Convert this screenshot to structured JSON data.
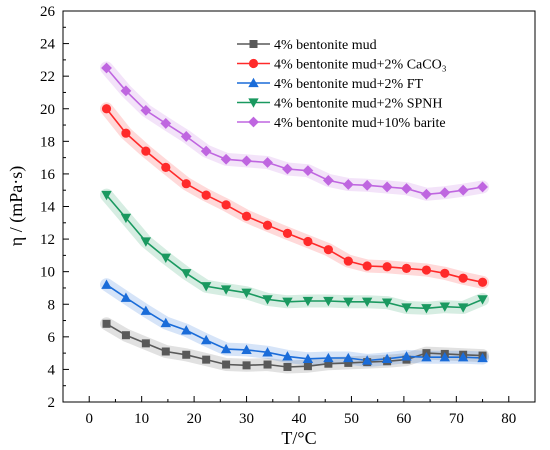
{
  "chart_data": {
    "type": "line",
    "xlabel": "T/°C",
    "ylabel": "η / (mPa·s)",
    "xlim": [
      -5,
      85
    ],
    "ylim": [
      2,
      26
    ],
    "xticks": [
      "0",
      "10",
      "20",
      "30",
      "40",
      "50",
      "60",
      "70",
      "80"
    ],
    "yticks": [
      "2",
      "4",
      "6",
      "8",
      "10",
      "12",
      "14",
      "16",
      "18",
      "20",
      "22",
      "24",
      "26"
    ],
    "grid": false,
    "legend_position": "top-right",
    "x": [
      3.3,
      7.0,
      10.8,
      14.6,
      18.5,
      22.3,
      26.1,
      30.0,
      34.0,
      37.8,
      41.7,
      45.6,
      49.4,
      53.0,
      56.8,
      60.5,
      64.3,
      67.8,
      71.3,
      75.0
    ],
    "series": [
      {
        "name": "4% bentonite mud",
        "color": "#595959",
        "marker": "square",
        "values": [
          6.8,
          6.1,
          5.6,
          5.1,
          4.9,
          4.6,
          4.3,
          4.25,
          4.3,
          4.15,
          4.2,
          4.35,
          4.4,
          4.45,
          4.5,
          4.6,
          5.0,
          4.95,
          4.9,
          4.85
        ]
      },
      {
        "name": "4% bentonite mud+2% CaCO₃",
        "color": "#ff2a2a",
        "marker": "circle",
        "values": [
          20.0,
          18.5,
          17.4,
          16.4,
          15.4,
          14.7,
          14.1,
          13.4,
          12.85,
          12.35,
          11.85,
          11.35,
          10.65,
          10.35,
          10.3,
          10.2,
          10.1,
          9.9,
          9.6,
          9.35
        ]
      },
      {
        "name": "4% bentonite mud+2% FT",
        "color": "#1a6cd9",
        "marker": "triangle-up",
        "values": [
          9.2,
          8.4,
          7.6,
          6.85,
          6.4,
          5.8,
          5.25,
          5.2,
          5.05,
          4.8,
          4.65,
          4.7,
          4.7,
          4.55,
          4.65,
          4.8,
          4.75,
          4.75,
          4.75,
          4.7
        ]
      },
      {
        "name": "4% bentonite mud+2% SPNH",
        "color": "#1a9960",
        "marker": "triangle-down",
        "values": [
          14.7,
          13.3,
          11.85,
          10.85,
          9.9,
          9.1,
          8.9,
          8.7,
          8.3,
          8.15,
          8.2,
          8.2,
          8.15,
          8.15,
          8.1,
          7.8,
          7.75,
          7.85,
          7.8,
          8.3
        ]
      },
      {
        "name": "4% bentonite mud+10% barite",
        "color": "#bf66e0",
        "marker": "diamond",
        "values": [
          22.5,
          21.1,
          19.9,
          19.1,
          18.3,
          17.4,
          16.9,
          16.8,
          16.7,
          16.3,
          16.2,
          15.6,
          15.35,
          15.3,
          15.2,
          15.1,
          14.75,
          14.85,
          15.0,
          15.2
        ]
      }
    ]
  }
}
